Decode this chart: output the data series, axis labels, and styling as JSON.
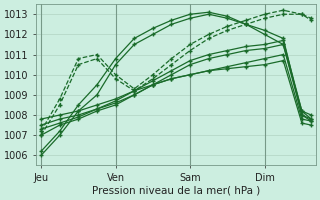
{
  "bg_color": "#cceee0",
  "grid_color": "#aaccbb",
  "line_color": "#1a6b2a",
  "marker_color": "#1a6b2a",
  "xlabel": "Pression niveau de la mer( hPa )",
  "ylabel_ticks": [
    1006,
    1007,
    1008,
    1009,
    1010,
    1011,
    1012,
    1013
  ],
  "xtick_labels": [
    "Jeu",
    "Ven",
    "Sam",
    "Dim"
  ],
  "xtick_positions": [
    0,
    8,
    16,
    24
  ],
  "xlim": [
    -0.5,
    29.5
  ],
  "ylim": [
    1005.5,
    1013.5
  ],
  "vlines": [
    0,
    8,
    16,
    24
  ],
  "series": [
    {
      "points": [
        [
          0,
          1006.0
        ],
        [
          2,
          1007.0
        ],
        [
          4,
          1008.2
        ],
        [
          6,
          1009.0
        ],
        [
          8,
          1010.5
        ],
        [
          10,
          1011.5
        ],
        [
          12,
          1012.0
        ],
        [
          14,
          1012.5
        ],
        [
          16,
          1012.8
        ],
        [
          18,
          1013.0
        ],
        [
          20,
          1012.8
        ],
        [
          22,
          1012.5
        ],
        [
          24,
          1012.2
        ],
        [
          26,
          1011.8
        ],
        [
          28,
          1008.0
        ],
        [
          29,
          1007.7
        ]
      ],
      "dashed": false
    },
    {
      "points": [
        [
          0,
          1006.2
        ],
        [
          2,
          1007.2
        ],
        [
          4,
          1008.5
        ],
        [
          6,
          1009.5
        ],
        [
          8,
          1010.8
        ],
        [
          10,
          1011.8
        ],
        [
          12,
          1012.3
        ],
        [
          14,
          1012.7
        ],
        [
          16,
          1013.0
        ],
        [
          18,
          1013.1
        ],
        [
          20,
          1012.9
        ],
        [
          22,
          1012.5
        ],
        [
          24,
          1012.0
        ],
        [
          26,
          1011.5
        ],
        [
          28,
          1008.2
        ],
        [
          29,
          1007.8
        ]
      ],
      "dashed": false
    },
    {
      "points": [
        [
          0,
          1007.0
        ],
        [
          2,
          1008.5
        ],
        [
          4,
          1010.5
        ],
        [
          6,
          1010.8
        ],
        [
          8,
          1009.8
        ],
        [
          10,
          1009.2
        ],
        [
          12,
          1009.8
        ],
        [
          14,
          1010.5
        ],
        [
          16,
          1011.2
        ],
        [
          18,
          1011.8
        ],
        [
          20,
          1012.2
        ],
        [
          22,
          1012.5
        ],
        [
          24,
          1012.8
        ],
        [
          26,
          1013.0
        ],
        [
          28,
          1013.0
        ],
        [
          29,
          1012.8
        ]
      ],
      "dashed": true
    },
    {
      "points": [
        [
          0,
          1007.2
        ],
        [
          2,
          1008.8
        ],
        [
          4,
          1010.8
        ],
        [
          6,
          1011.0
        ],
        [
          8,
          1010.0
        ],
        [
          10,
          1009.3
        ],
        [
          12,
          1010.0
        ],
        [
          14,
          1010.8
        ],
        [
          16,
          1011.5
        ],
        [
          18,
          1012.0
        ],
        [
          20,
          1012.4
        ],
        [
          22,
          1012.7
        ],
        [
          24,
          1013.0
        ],
        [
          26,
          1013.2
        ],
        [
          28,
          1013.0
        ],
        [
          29,
          1012.7
        ]
      ],
      "dashed": true
    },
    {
      "points": [
        [
          0,
          1007.0
        ],
        [
          2,
          1007.5
        ],
        [
          4,
          1007.8
        ],
        [
          6,
          1008.2
        ],
        [
          8,
          1008.5
        ],
        [
          10,
          1009.0
        ],
        [
          12,
          1009.5
        ],
        [
          14,
          1010.0
        ],
        [
          16,
          1010.5
        ],
        [
          18,
          1010.8
        ],
        [
          20,
          1011.0
        ],
        [
          22,
          1011.2
        ],
        [
          24,
          1011.3
        ],
        [
          26,
          1011.5
        ],
        [
          28,
          1008.0
        ],
        [
          29,
          1007.8
        ]
      ],
      "dashed": false
    },
    {
      "points": [
        [
          0,
          1007.3
        ],
        [
          2,
          1007.6
        ],
        [
          4,
          1007.9
        ],
        [
          6,
          1008.3
        ],
        [
          8,
          1008.7
        ],
        [
          10,
          1009.2
        ],
        [
          12,
          1009.7
        ],
        [
          14,
          1010.2
        ],
        [
          16,
          1010.7
        ],
        [
          18,
          1011.0
        ],
        [
          20,
          1011.2
        ],
        [
          22,
          1011.4
        ],
        [
          24,
          1011.5
        ],
        [
          26,
          1011.7
        ],
        [
          28,
          1008.2
        ],
        [
          29,
          1008.0
        ]
      ],
      "dashed": false
    },
    {
      "points": [
        [
          0,
          1007.5
        ],
        [
          2,
          1007.8
        ],
        [
          4,
          1008.0
        ],
        [
          6,
          1008.3
        ],
        [
          8,
          1008.6
        ],
        [
          10,
          1009.0
        ],
        [
          12,
          1009.5
        ],
        [
          14,
          1009.8
        ],
        [
          16,
          1010.0
        ],
        [
          18,
          1010.2
        ],
        [
          20,
          1010.4
        ],
        [
          22,
          1010.6
        ],
        [
          24,
          1010.8
        ],
        [
          26,
          1011.0
        ],
        [
          28,
          1007.8
        ],
        [
          29,
          1007.7
        ]
      ],
      "dashed": false
    },
    {
      "points": [
        [
          0,
          1007.8
        ],
        [
          2,
          1008.0
        ],
        [
          4,
          1008.2
        ],
        [
          6,
          1008.5
        ],
        [
          8,
          1008.8
        ],
        [
          10,
          1009.2
        ],
        [
          12,
          1009.5
        ],
        [
          14,
          1009.8
        ],
        [
          16,
          1010.0
        ],
        [
          18,
          1010.2
        ],
        [
          20,
          1010.3
        ],
        [
          22,
          1010.4
        ],
        [
          24,
          1010.5
        ],
        [
          26,
          1010.7
        ],
        [
          28,
          1007.6
        ],
        [
          29,
          1007.5
        ]
      ],
      "dashed": false
    }
  ]
}
